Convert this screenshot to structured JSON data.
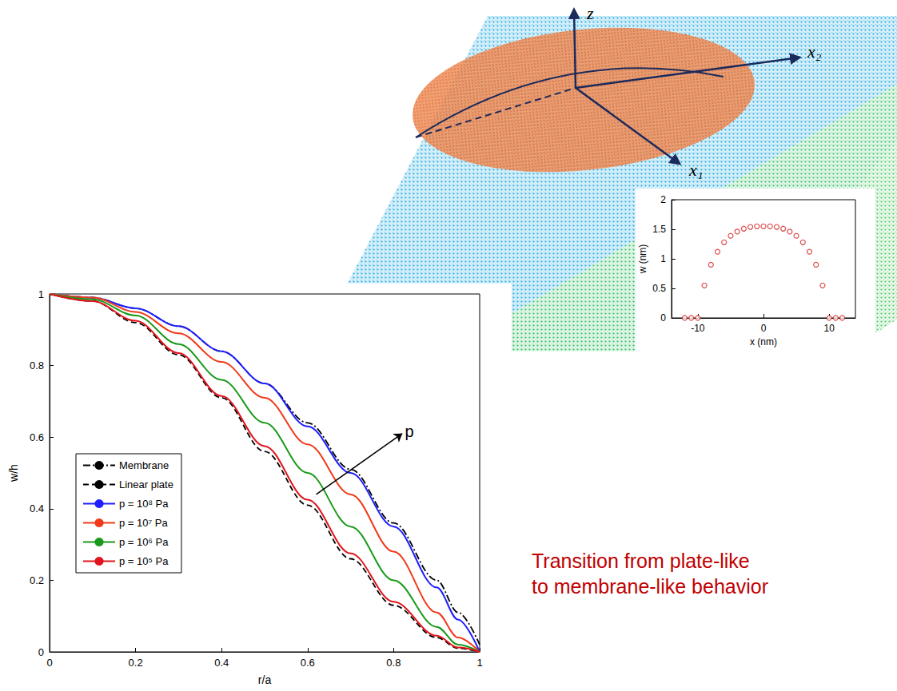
{
  "diagram": {
    "axes": [
      "z",
      "x₂",
      "x₁"
    ]
  },
  "chart_data": [
    {
      "type": "line",
      "x_label": "r/a",
      "y_label": "w/h",
      "x": [
        0,
        0.1,
        0.2,
        0.3,
        0.4,
        0.5,
        0.6,
        0.7,
        0.8,
        0.9,
        0.95,
        1
      ],
      "xlim": [
        0,
        1
      ],
      "xticks": [
        0,
        0.2,
        0.4,
        0.6,
        0.8,
        1
      ],
      "ylim": [
        0,
        1
      ],
      "yticks": [
        0,
        0.2,
        0.4,
        0.6,
        0.8,
        1
      ],
      "grid": false,
      "legend": "lower left",
      "series": [
        {
          "name": "Membrane",
          "color": "#000000",
          "line_style": "dashdot",
          "values": [
            1,
            0.99,
            0.96,
            0.91,
            0.84,
            0.75,
            0.64,
            0.51,
            0.36,
            0.2,
            0.11,
            0.02
          ]
        },
        {
          "name": "Linear plate",
          "color": "#000000",
          "line_style": "dashed",
          "values": [
            1,
            0.98,
            0.92,
            0.83,
            0.71,
            0.56,
            0.41,
            0.26,
            0.13,
            0.04,
            0.01,
            0
          ]
        },
        {
          "name": "p = 10⁸ Pa",
          "color": "#1f1fff",
          "line_style": "solid",
          "values": [
            1,
            0.99,
            0.96,
            0.91,
            0.84,
            0.75,
            0.63,
            0.5,
            0.35,
            0.18,
            0.09,
            0
          ]
        },
        {
          "name": "p = 10⁷ Pa",
          "color": "#f03a1a",
          "line_style": "solid",
          "values": [
            1,
            0.99,
            0.95,
            0.89,
            0.81,
            0.71,
            0.58,
            0.44,
            0.28,
            0.11,
            0.04,
            0
          ]
        },
        {
          "name": "p = 10⁶ Pa",
          "color": "#1a9a1a",
          "line_style": "solid",
          "values": [
            1,
            0.985,
            0.94,
            0.86,
            0.76,
            0.64,
            0.5,
            0.35,
            0.2,
            0.07,
            0.02,
            0
          ]
        },
        {
          "name": "p = 10⁵ Pa",
          "color": "#e0141c",
          "line_style": "solid",
          "values": [
            1,
            0.98,
            0.925,
            0.835,
            0.715,
            0.575,
            0.425,
            0.275,
            0.14,
            0.045,
            0.012,
            0
          ]
        }
      ],
      "annotations": [
        {
          "text": "p"
        }
      ]
    },
    {
      "type": "scatter",
      "x_label": "x (nm)",
      "y_label": "w (nm)",
      "x": [
        -12,
        -11,
        -10,
        -9,
        -8,
        -7,
        -6,
        -5,
        -4,
        -3,
        -2,
        -1,
        0,
        1,
        2,
        3,
        4,
        5,
        6,
        7,
        8,
        9,
        10,
        11,
        12
      ],
      "values": [
        0,
        0,
        0,
        0.55,
        0.9,
        1.12,
        1.28,
        1.39,
        1.46,
        1.51,
        1.54,
        1.55,
        1.55,
        1.55,
        1.54,
        1.51,
        1.46,
        1.39,
        1.28,
        1.12,
        0.9,
        0.55,
        0,
        0,
        0
      ],
      "color": "#d42020",
      "marker": "circle-open",
      "xlim": [
        -14,
        14
      ],
      "xticks": [
        -10,
        0,
        10
      ],
      "ylim": [
        0,
        2
      ],
      "yticks": [
        0,
        0.5,
        1,
        1.5,
        2
      ],
      "grid": false
    }
  ],
  "annotation": {
    "text": "Transition from plate-like to membrane-like behavior",
    "color": "#c00000"
  }
}
